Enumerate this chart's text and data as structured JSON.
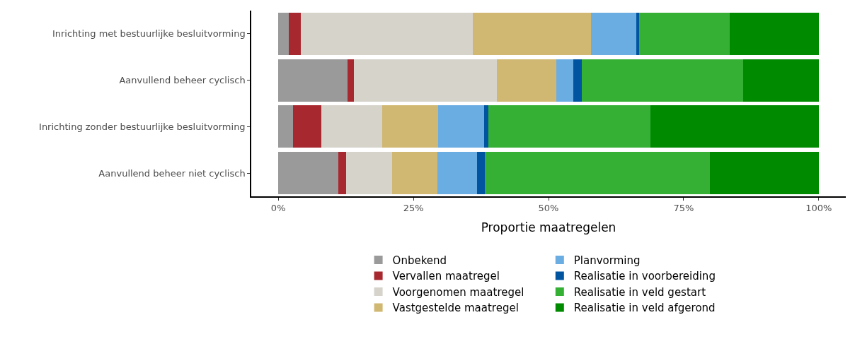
{
  "chart_data": {
    "type": "bar",
    "orientation": "horizontal",
    "stacked": true,
    "xlabel": "Proportie maatregelen",
    "categories": [
      "Inrichting met bestuurlijke besluitvorming",
      "Aanvullend beheer cyclisch",
      "Inrichting zonder bestuurlijke besluitvorming",
      "Aanvullend beheer niet cyclisch"
    ],
    "series": [
      {
        "name": "Onbekend",
        "color": "#9a9a9a",
        "values": [
          1.9,
          12.8,
          2.7,
          11.1
        ]
      },
      {
        "name": "Vervallen maatregel",
        "color": "#a82830",
        "values": [
          2.3,
          1.2,
          5.3,
          1.4
        ]
      },
      {
        "name": "Voorgenomen maatregel",
        "color": "#d6d3cb",
        "values": [
          31.8,
          26.5,
          11.2,
          8.6
        ]
      },
      {
        "name": "Vastgestelde maatregel",
        "color": "#d1b872",
        "values": [
          21.8,
          11.0,
          10.4,
          8.4
        ]
      },
      {
        "name": "Planvorming",
        "color": "#6aade3",
        "values": [
          8.4,
          3.1,
          8.5,
          7.3
        ]
      },
      {
        "name": "Realisatie in voorbereiding",
        "color": "#0054a0",
        "values": [
          0.6,
          1.6,
          0.8,
          1.4
        ]
      },
      {
        "name": "Realisatie in veld gestart",
        "color": "#35b035",
        "values": [
          16.7,
          29.8,
          30.0,
          41.7
        ]
      },
      {
        "name": "Realisatie in veld afgerond",
        "color": "#008a00",
        "values": [
          16.5,
          14.0,
          31.1,
          20.1
        ]
      }
    ],
    "xlim": [
      -5,
      105
    ],
    "xticks": [
      {
        "value": 0,
        "label": "0%"
      },
      {
        "value": 25,
        "label": "25%"
      },
      {
        "value": 50,
        "label": "50%"
      },
      {
        "value": 75,
        "label": "75%"
      },
      {
        "value": 100,
        "label": "100%"
      }
    ],
    "legend": "bottom"
  }
}
